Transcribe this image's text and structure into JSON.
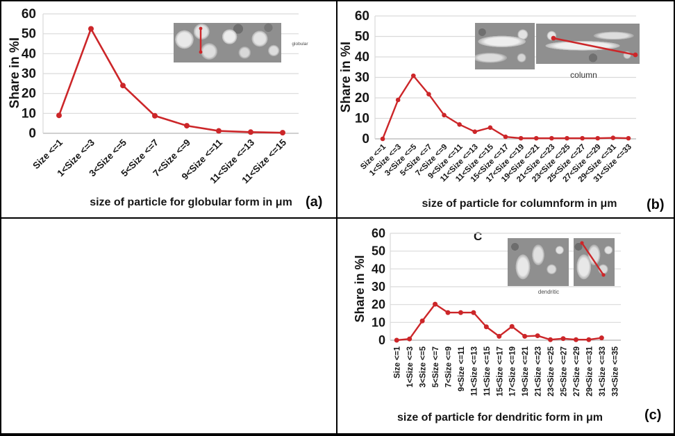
{
  "frame": {
    "border_color": "#000000",
    "background": "#ffffff"
  },
  "chart_data": [
    {
      "id": "a",
      "type": "line",
      "panel_label": "(a)",
      "title": "",
      "xlabel": "size of particle for globular form in μm",
      "ylabel": "Share in %I",
      "ylim": [
        0,
        60
      ],
      "ytick_step": 10,
      "grid": true,
      "line_color": "#cc2629",
      "marker": "circle",
      "categories": [
        "Size <=1",
        "1<Size <=3",
        "3<Size <=5",
        "5<Size <=7",
        "7<Size <=9",
        "9<Size <=11",
        "11<Size <=13",
        "11<Size <=15"
      ],
      "values": [
        9,
        52.5,
        24,
        8.8,
        3.8,
        1.2,
        0.6,
        0.3
      ],
      "inset": {
        "images": 1,
        "label": "globular",
        "measure_line": "vertical"
      }
    },
    {
      "id": "b",
      "type": "line",
      "panel_label": "(b)",
      "title": "",
      "xlabel": "size of particle for columnform in μm",
      "ylabel": "Share in %I",
      "ylim": [
        0,
        60
      ],
      "ytick_step": 10,
      "grid": true,
      "line_color": "#cc2629",
      "marker": "circle",
      "categories": [
        "Size <=1",
        "1<Size <=3",
        "3<Size <=5",
        "5<Size <=7",
        "7<Size <=9",
        "9<Size <=11",
        "11<Size <=13",
        "11<Size <=15",
        "15<Size <=17",
        "17<Size <=19",
        "19<Size <=21",
        "21<Size <=23",
        "23<Size <=25",
        "25<Size <=27",
        "27<Size <=29",
        "29<Size <=31",
        "31<Size <=33"
      ],
      "values": [
        0,
        19,
        30.8,
        21.8,
        11.6,
        7,
        3.5,
        5.5,
        1,
        0.3,
        0.3,
        0.3,
        0.3,
        0.3,
        0.3,
        0.5,
        0.3
      ],
      "inset": {
        "images": 2,
        "label": "column",
        "measure_line": "horizontal"
      }
    },
    {
      "id": "c",
      "type": "line",
      "panel_label": "(c)",
      "title": "",
      "annotation": "C",
      "xlabel": "size of particle for dendritic form in μm",
      "ylabel": "Share in %I",
      "ylim": [
        0,
        60
      ],
      "ytick_step": 10,
      "grid": true,
      "line_color": "#cc2629",
      "marker": "circle",
      "categories": [
        "Size <=1",
        "1<Size <=3",
        "3<Size <=5",
        "5<Size <=7",
        "7<Size <=9",
        "9<Size <=11",
        "11<Size <=13",
        "11<Size <=15",
        "15<Size <=17",
        "17<Size <=19",
        "19<Size <=21",
        "21<Size <=23",
        "23<Size <=25",
        "25<Size <=27",
        "27<Size <=29",
        "29<Size <=31",
        "31<Size <=33",
        "33<Size <=35"
      ],
      "values": [
        0,
        0.7,
        10.8,
        20.2,
        15.5,
        15.5,
        15.5,
        7.5,
        2.2,
        7.7,
        2.2,
        2.5,
        0.3,
        0.9,
        0.3,
        0.3,
        1.3,
        null
      ],
      "inset": {
        "images": 2,
        "label": "dendritic",
        "measure_line": "diagonal"
      }
    }
  ]
}
